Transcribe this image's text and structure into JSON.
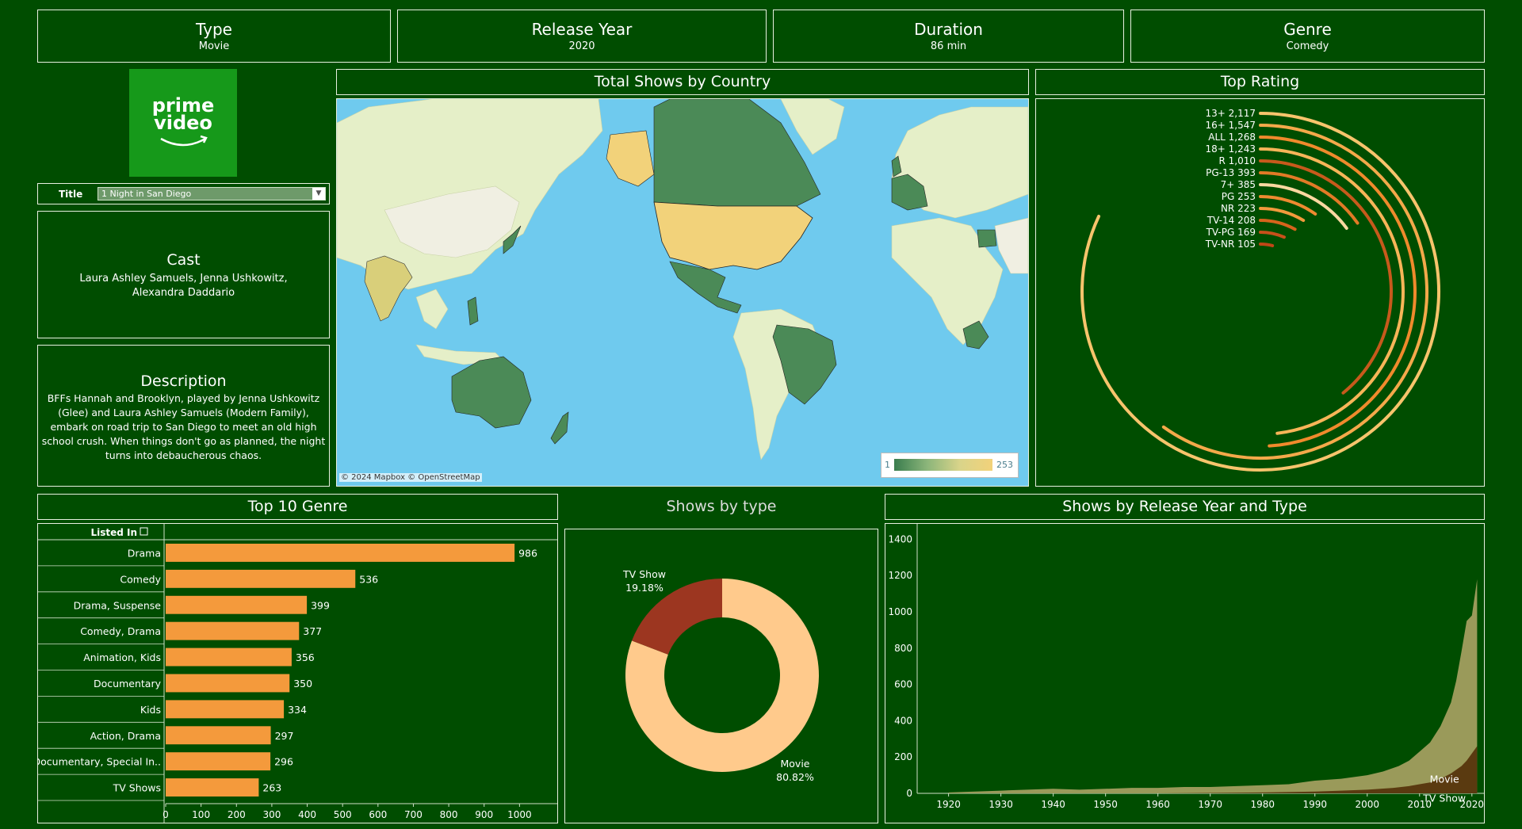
{
  "kpis": [
    {
      "title": "Type",
      "value": "Movie"
    },
    {
      "title": "Release Year",
      "value": "2020"
    },
    {
      "title": "Duration",
      "value": "86 min"
    },
    {
      "title": "Genre",
      "value": "Comedy"
    }
  ],
  "logo": {
    "line1": "prime",
    "line2": "video"
  },
  "title_filter": {
    "label": "Title",
    "value": "1 Night in San Diego"
  },
  "cast": {
    "title": "Cast",
    "text": "Laura Ashley Samuels, Jenna Ushkowitz, Alexandra Daddario"
  },
  "description": {
    "title": "Description",
    "text": "BFFs Hannah and Brooklyn, played by Jenna Ushkowitz (Glee) and Laura Ashley Samuels (Modern Family), embark on road trip to San Diego to meet an old high school crush. When things don't go as planned, the night turns into debaucherous chaos."
  },
  "map": {
    "title": "Total Shows by Country",
    "attribution": "© 2024 Mapbox © OpenStreetMap",
    "legend_min": "1",
    "legend_max": "253",
    "colors": {
      "ocean": "#6fcaee",
      "land": "#f0efe2",
      "highlight_high": "#f2d27a",
      "highlight_low": "#4b8a57",
      "other": "#e5efc8"
    }
  },
  "rating": {
    "title": "Top Rating"
  },
  "genre": {
    "title": "Top 10 Genre",
    "column_header": "Listed In"
  },
  "type_donut": {
    "title": "Shows by type"
  },
  "area": {
    "title": "Shows by Release Year and Type"
  },
  "chart_data": [
    {
      "type": "bar",
      "title": "Top 10 Genre",
      "categories": [
        "Drama",
        "Comedy",
        "Drama, Suspense",
        "Comedy, Drama",
        "Animation, Kids",
        "Documentary",
        "Kids",
        "Action, Drama",
        "Documentary, Special In..",
        "TV Shows"
      ],
      "values": [
        986,
        536,
        399,
        377,
        356,
        350,
        334,
        297,
        296,
        263
      ],
      "xticks": [
        0,
        100,
        200,
        300,
        400,
        500,
        600,
        700,
        800,
        900,
        1000
      ],
      "xlim": [
        0,
        1100
      ],
      "color": "#f49a3c"
    },
    {
      "type": "radial-bar",
      "title": "Top Rating",
      "categories": [
        "13+",
        "16+",
        "ALL",
        "18+",
        "R",
        "PG-13",
        "7+",
        "PG",
        "NR",
        "TV-14",
        "TV-PG",
        "TV-NR"
      ],
      "labels": [
        "2,117",
        "1,547",
        "1,268",
        "1,243",
        "1,010",
        "393",
        "385",
        "253",
        "223",
        "208",
        "169",
        "105"
      ],
      "values": [
        2117,
        1547,
        1268,
        1243,
        1010,
        393,
        385,
        253,
        223,
        208,
        169,
        105
      ],
      "colors": [
        "#f7c46c",
        "#f4a94a",
        "#f08a2c",
        "#f7b558",
        "#c75a1c",
        "#e27a26",
        "#fbd8a0",
        "#ee8a30",
        "#f29a3c",
        "#d5641c",
        "#c8501a",
        "#c04616"
      ]
    },
    {
      "type": "pie",
      "title": "Shows by type",
      "categories": [
        "Movie",
        "TV Show"
      ],
      "values": [
        80.82,
        19.18
      ],
      "labels": [
        "80.82%",
        "19.18%"
      ],
      "colors": [
        "#ffca8c",
        "#9c3620"
      ]
    },
    {
      "type": "area",
      "title": "Shows by Release Year and Type",
      "series": [
        {
          "name": "Movie",
          "color": "#9a9a5a",
          "x": [
            1920,
            1925,
            1930,
            1935,
            1940,
            1945,
            1950,
            1955,
            1960,
            1965,
            1970,
            1975,
            1980,
            1985,
            1990,
            1995,
            2000,
            2003,
            2006,
            2008,
            2010,
            2012,
            2014,
            2016,
            2017,
            2018,
            2019,
            2020,
            2021
          ],
          "y": [
            5,
            10,
            15,
            20,
            25,
            20,
            25,
            30,
            30,
            35,
            35,
            40,
            45,
            50,
            70,
            80,
            100,
            120,
            150,
            180,
            230,
            280,
            370,
            500,
            620,
            780,
            950,
            980,
            1180
          ]
        },
        {
          "name": "TV Show",
          "color": "#5a3a10",
          "x": [
            1920,
            1930,
            1940,
            1950,
            1960,
            1970,
            1980,
            1990,
            1995,
            2000,
            2005,
            2008,
            2010,
            2012,
            2014,
            2016,
            2017,
            2018,
            2019,
            2020,
            2021
          ],
          "y": [
            0,
            0,
            0,
            0,
            0,
            2,
            5,
            10,
            15,
            20,
            30,
            40,
            50,
            60,
            80,
            110,
            130,
            150,
            180,
            220,
            260
          ]
        }
      ],
      "xticks": [
        1920,
        1930,
        1940,
        1950,
        1960,
        1970,
        1980,
        1990,
        2000,
        2010,
        2020
      ],
      "yticks": [
        0,
        200,
        400,
        600,
        800,
        1000,
        1200,
        1400
      ],
      "xlim": [
        1914,
        2022
      ],
      "ylim": [
        0,
        1450
      ]
    }
  ]
}
